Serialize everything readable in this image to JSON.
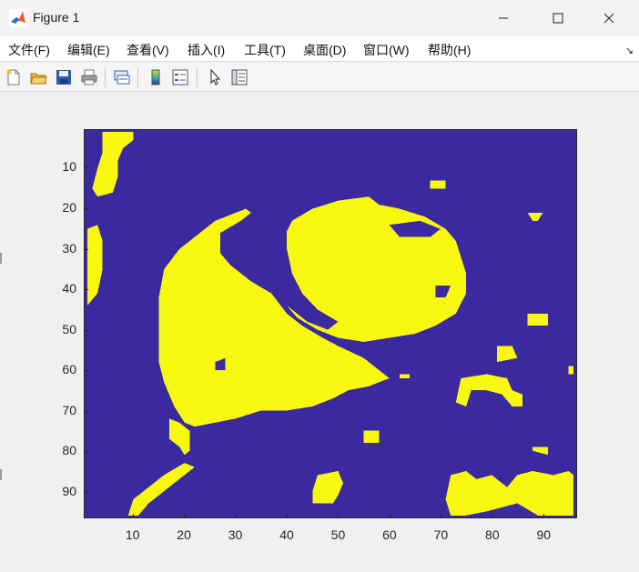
{
  "window": {
    "title": "Figure 1"
  },
  "menu": {
    "items": [
      {
        "label": "文件(F)"
      },
      {
        "label": "编辑(E)"
      },
      {
        "label": "查看(V)"
      },
      {
        "label": "插入(I)"
      },
      {
        "label": "工具(T)"
      },
      {
        "label": "桌面(D)"
      },
      {
        "label": "窗口(W)"
      },
      {
        "label": "帮助(H)"
      }
    ]
  },
  "toolbar": {
    "buttons": [
      {
        "icon": "new-figure-icon"
      },
      {
        "icon": "open-file-icon"
      },
      {
        "icon": "save-icon"
      },
      {
        "icon": "print-icon"
      },
      {
        "icon": "link-figure-icon"
      },
      {
        "icon": "colorbar-icon"
      },
      {
        "icon": "legend-icon"
      },
      {
        "icon": "pointer-icon"
      },
      {
        "icon": "property-inspector-icon"
      }
    ]
  },
  "chart_data": {
    "type": "heatmap",
    "colormap": [
      "#3b2a9f",
      "#f7f70f"
    ],
    "description_values": "binary image, 0 = blue background, 1 = yellow regions",
    "ytick_labels": [
      "10",
      "20",
      "30",
      "40",
      "50",
      "60",
      "70",
      "80",
      "90"
    ],
    "xtick_labels": [
      "10",
      "20",
      "30",
      "40",
      "50",
      "60",
      "70",
      "80",
      "90"
    ],
    "xlim": [
      0.5,
      96.5
    ],
    "ylim": [
      0.5,
      96.5
    ]
  }
}
